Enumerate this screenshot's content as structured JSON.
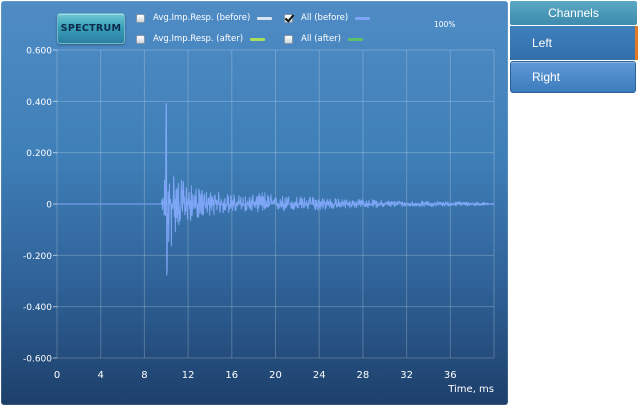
{
  "toolbar": {
    "spectrum_label": "SPECTRUM",
    "zoom_label": "100%"
  },
  "legend": [
    {
      "label": "Avg.Imp.Resp. (before)",
      "checked": false,
      "color": "#d9e4ee"
    },
    {
      "label": "All (before)",
      "checked": true,
      "color": "#7ea6f7"
    },
    {
      "label": "Avg.Imp.Resp. (after)",
      "checked": false,
      "color": "#a8e05a"
    },
    {
      "label": "All (after)",
      "checked": false,
      "color": "#5cc06a"
    }
  ],
  "sidebar": {
    "header": "Channels",
    "channels": [
      {
        "label": "Left",
        "selected": true
      },
      {
        "label": "Right",
        "selected": false
      }
    ]
  },
  "chart_data": {
    "type": "line",
    "title": "",
    "xlabel": "Time, ms",
    "ylabel": "",
    "xlim": [
      0,
      40
    ],
    "ylim": [
      -0.6,
      0.6
    ],
    "x_ticks": [
      "0",
      "4",
      "8",
      "12",
      "16",
      "20",
      "24",
      "28",
      "32",
      "36"
    ],
    "y_ticks": [
      "0.600",
      "0.400",
      "0.200",
      "0",
      "-0.200",
      "-0.400",
      "-0.600"
    ],
    "grid": true,
    "series": [
      {
        "name": "All (before)",
        "color": "#7ea6f7",
        "x": [
          0,
          9.5,
          9.8,
          10.0,
          10.2,
          10.4,
          10.6,
          10.8,
          11.0,
          11.3,
          11.6,
          12.0,
          12.5,
          13,
          14,
          15,
          16,
          17,
          18,
          19,
          20,
          21,
          22,
          23,
          24,
          25,
          26,
          28,
          30,
          32,
          34,
          36,
          38,
          40
        ],
        "peak_upper": [
          0,
          0,
          0.05,
          0.41,
          0.12,
          0.08,
          0.15,
          0.13,
          0.11,
          0.09,
          0.1,
          0.08,
          0.07,
          0.06,
          0.05,
          0.045,
          0.04,
          0.035,
          0.035,
          0.05,
          0.03,
          0.035,
          0.03,
          0.028,
          0.03,
          0.025,
          0.02,
          0.018,
          0.015,
          0.012,
          0.01,
          0.01,
          0.008,
          0.005
        ],
        "peak_lower": [
          0,
          0,
          -0.05,
          -0.31,
          -0.18,
          -0.2,
          -0.14,
          -0.12,
          -0.1,
          -0.08,
          -0.08,
          -0.07,
          -0.06,
          -0.055,
          -0.045,
          -0.04,
          -0.035,
          -0.03,
          -0.03,
          -0.03,
          -0.025,
          -0.03,
          -0.025,
          -0.022,
          -0.025,
          -0.02,
          -0.018,
          -0.015,
          -0.012,
          -0.01,
          -0.01,
          -0.008,
          -0.007,
          -0.005
        ]
      }
    ]
  }
}
